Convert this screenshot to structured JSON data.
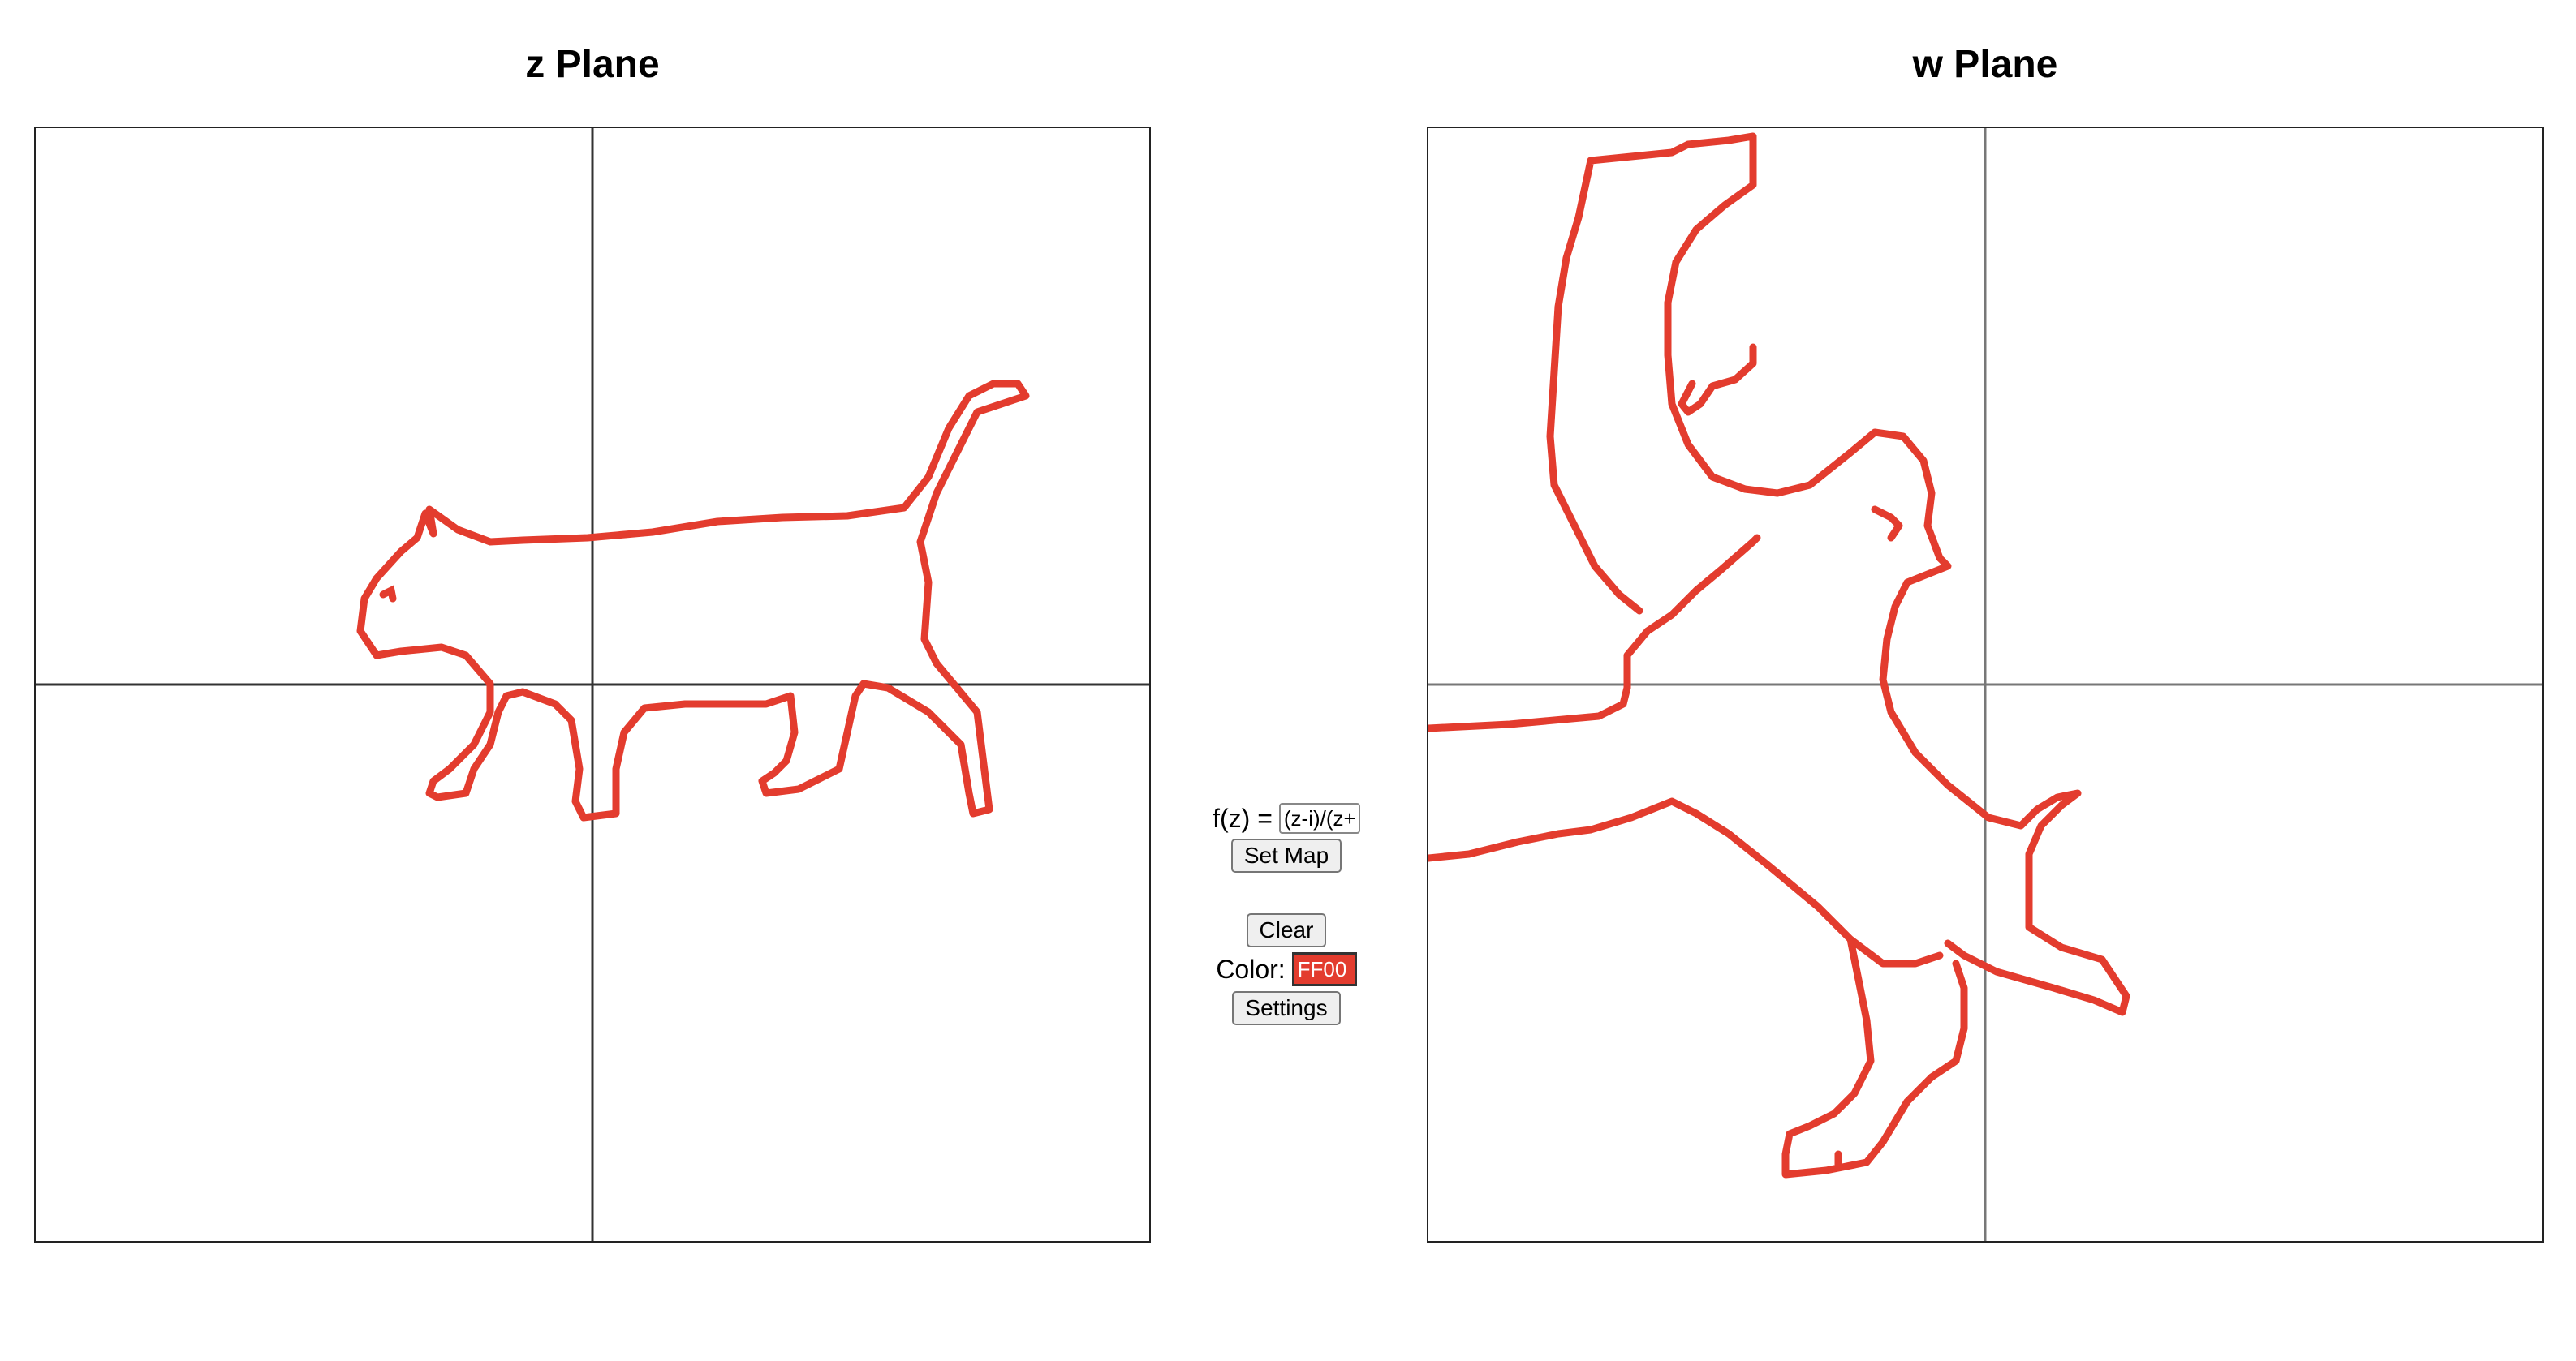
{
  "z_plane": {
    "title": "z Plane"
  },
  "w_plane": {
    "title": "w Plane"
  },
  "controls": {
    "fz_label": "f(z) =",
    "fz_value": "(z-i)/(z+",
    "set_map_label": "Set Map",
    "clear_label": "Clear",
    "color_label": "Color:",
    "color_value": "FF00",
    "settings_label": "Settings"
  },
  "colors": {
    "stroke": "#e33c2e",
    "axis": "#333333"
  }
}
